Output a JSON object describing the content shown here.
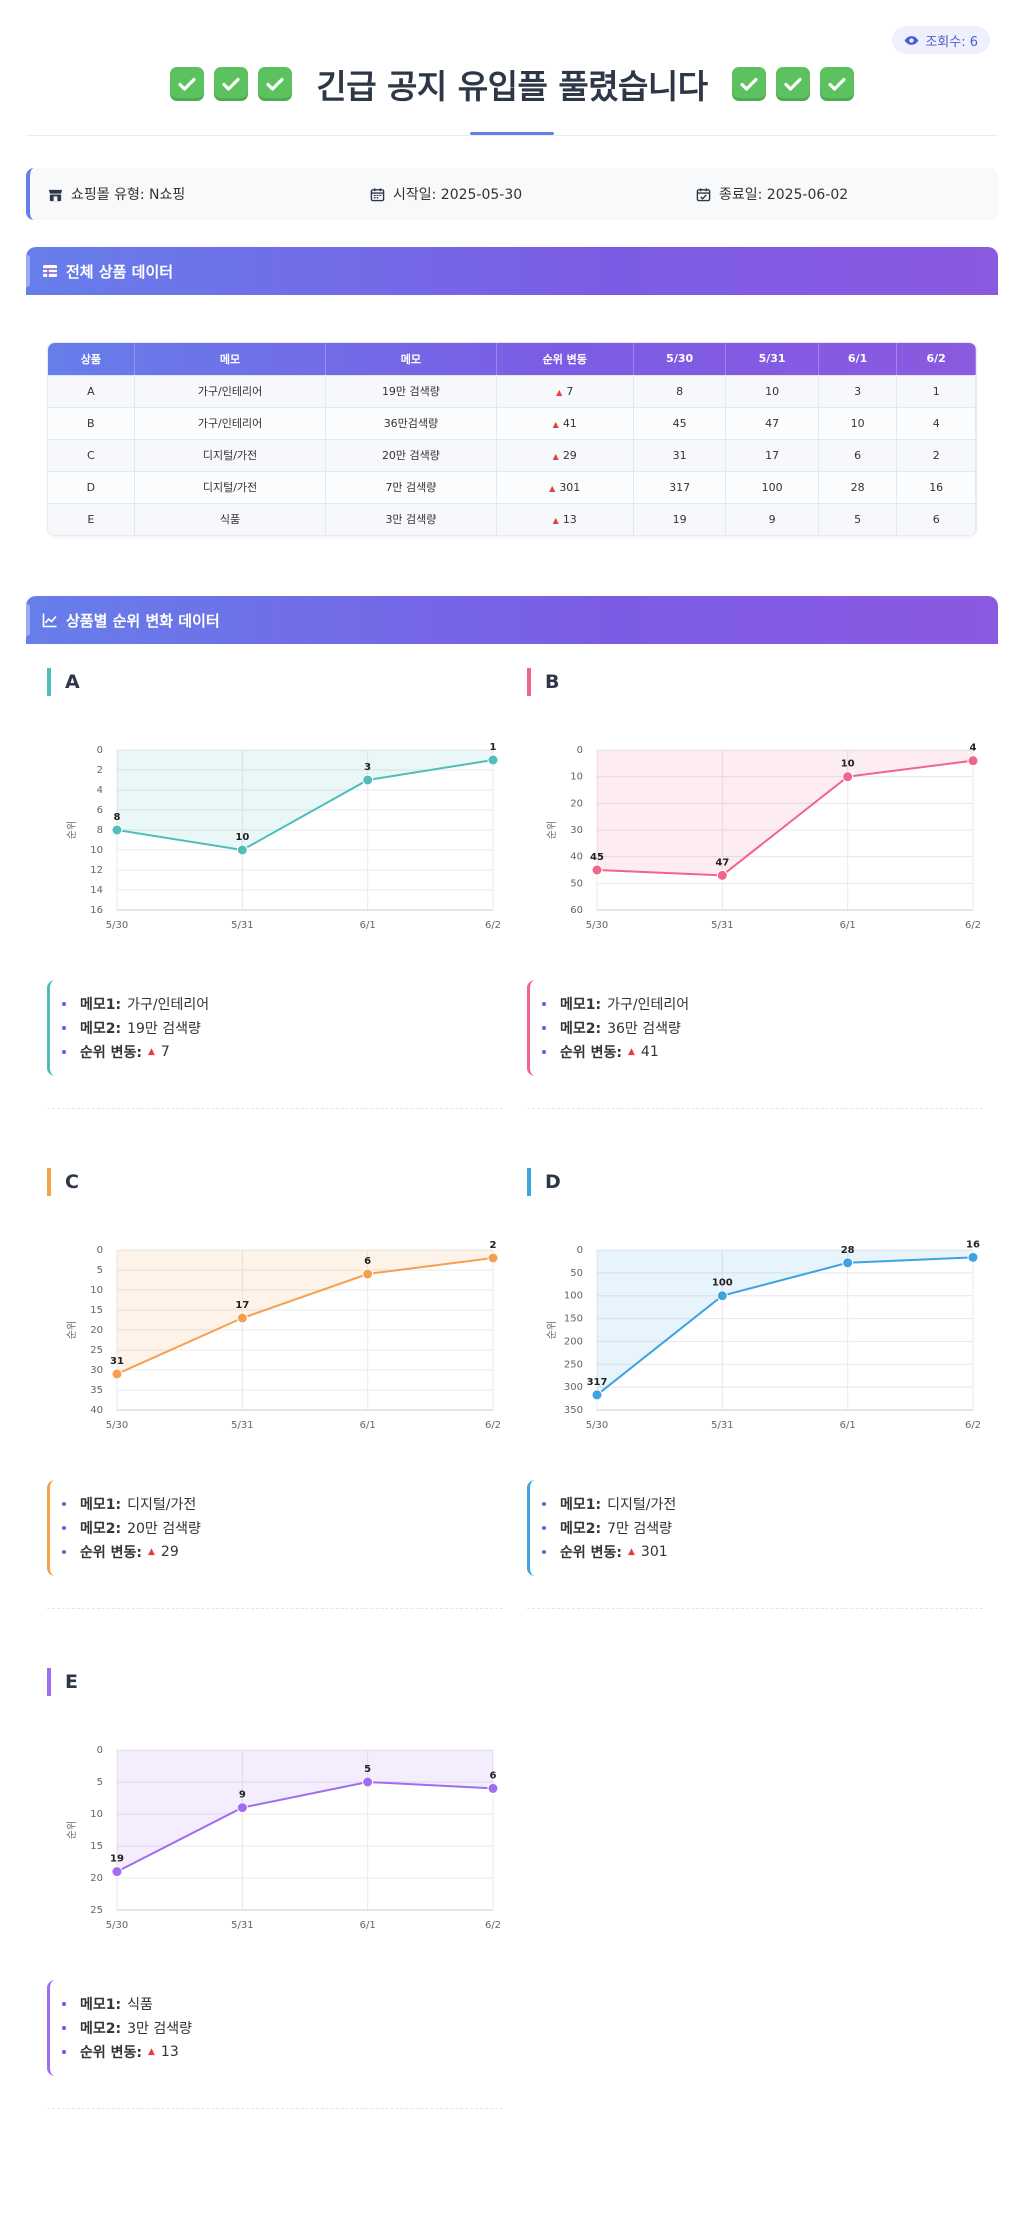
{
  "view_badge": {
    "label": "조회수: 6",
    "icon": "eye-icon"
  },
  "title": {
    "text": "긴급 공지 유입플 풀렸습니다",
    "decor_icon": "check-mark-button-icon"
  },
  "info": {
    "shop_type": "쇼핑몰 유형: N쇼핑",
    "start_date": "시작일: 2025-05-30",
    "end_date": "종료일: 2025-06-02"
  },
  "table_section": {
    "title": "전체 상품 데이터"
  },
  "table": {
    "headers": [
      "상품",
      "메모",
      "메모",
      "순위 변동",
      "5/30",
      "5/31",
      "6/1",
      "6/2"
    ],
    "rows": [
      [
        "A",
        "가구/인테리어",
        "19만 검색량",
        "7",
        "8",
        "10",
        "3",
        "1"
      ],
      [
        "B",
        "가구/인테리어",
        "36만검색량",
        "41",
        "45",
        "47",
        "10",
        "4"
      ],
      [
        "C",
        "디지털/가전",
        "20만 검색량",
        "29",
        "31",
        "17",
        "6",
        "2"
      ],
      [
        "D",
        "디지털/가전",
        "7만 검색량",
        "301",
        "317",
        "100",
        "28",
        "16"
      ],
      [
        "E",
        "식품",
        "3만 검색량",
        "13",
        "19",
        "9",
        "5",
        "6"
      ]
    ]
  },
  "chart_section": {
    "title": "상품별 순위 변화 데이터"
  },
  "memo_labels": {
    "memo1": "메모1:",
    "memo2": "메모2:",
    "change": "순위 변동:"
  },
  "products": [
    {
      "name": "A",
      "color": "#4fbdba",
      "memo1": "가구/인테리어",
      "memo2": "19만 검색량",
      "change": "7"
    },
    {
      "name": "B",
      "color": "#f0658a",
      "memo1": "가구/인테리어",
      "memo2": "36만 검색량",
      "change": "41"
    },
    {
      "name": "C",
      "color": "#f6a04d",
      "memo1": "디지털/가전",
      "memo2": "20만 검색량",
      "change": "29"
    },
    {
      "name": "D",
      "color": "#3fa3e0",
      "memo1": "디지털/가전",
      "memo2": "7만 검색량",
      "change": "301"
    },
    {
      "name": "E",
      "color": "#a06cf0",
      "memo1": "식품",
      "memo2": "3만 검색량",
      "change": "13"
    }
  ],
  "chart_data": [
    {
      "type": "line",
      "title": "A",
      "x": [
        "5/30",
        "5/31",
        "6/1",
        "6/2"
      ],
      "series": [
        {
          "values": [
            8,
            10,
            3,
            1
          ]
        }
      ],
      "ylabel": "순위",
      "ylim": [
        0,
        16
      ],
      "yticks": [
        0,
        2,
        4,
        6,
        8,
        10,
        12,
        14,
        16
      ],
      "y_reversed": true,
      "grid": true
    },
    {
      "type": "line",
      "title": "B",
      "x": [
        "5/30",
        "5/31",
        "6/1",
        "6/2"
      ],
      "series": [
        {
          "values": [
            45,
            47,
            10,
            4
          ]
        }
      ],
      "ylabel": "순위",
      "ylim": [
        0,
        60
      ],
      "yticks": [
        0,
        10,
        20,
        30,
        40,
        50,
        60
      ],
      "y_reversed": true,
      "grid": true
    },
    {
      "type": "line",
      "title": "C",
      "x": [
        "5/30",
        "5/31",
        "6/1",
        "6/2"
      ],
      "series": [
        {
          "values": [
            31,
            17,
            6,
            2
          ]
        }
      ],
      "ylabel": "순위",
      "ylim": [
        0,
        40
      ],
      "yticks": [
        0,
        5,
        10,
        15,
        20,
        25,
        30,
        35,
        40
      ],
      "y_reversed": true,
      "grid": true
    },
    {
      "type": "line",
      "title": "D",
      "x": [
        "5/30",
        "5/31",
        "6/1",
        "6/2"
      ],
      "series": [
        {
          "values": [
            317,
            100,
            28,
            16
          ]
        }
      ],
      "ylabel": "순위",
      "ylim": [
        0,
        350
      ],
      "yticks": [
        0,
        50,
        100,
        150,
        200,
        250,
        300,
        350
      ],
      "y_reversed": true,
      "grid": true
    },
    {
      "type": "line",
      "title": "E",
      "x": [
        "5/30",
        "5/31",
        "6/1",
        "6/2"
      ],
      "series": [
        {
          "values": [
            19,
            9,
            5,
            6
          ]
        }
      ],
      "ylabel": "순위",
      "ylim": [
        0,
        25
      ],
      "yticks": [
        0,
        5,
        10,
        15,
        20,
        25
      ],
      "y_reversed": true,
      "grid": true
    }
  ]
}
